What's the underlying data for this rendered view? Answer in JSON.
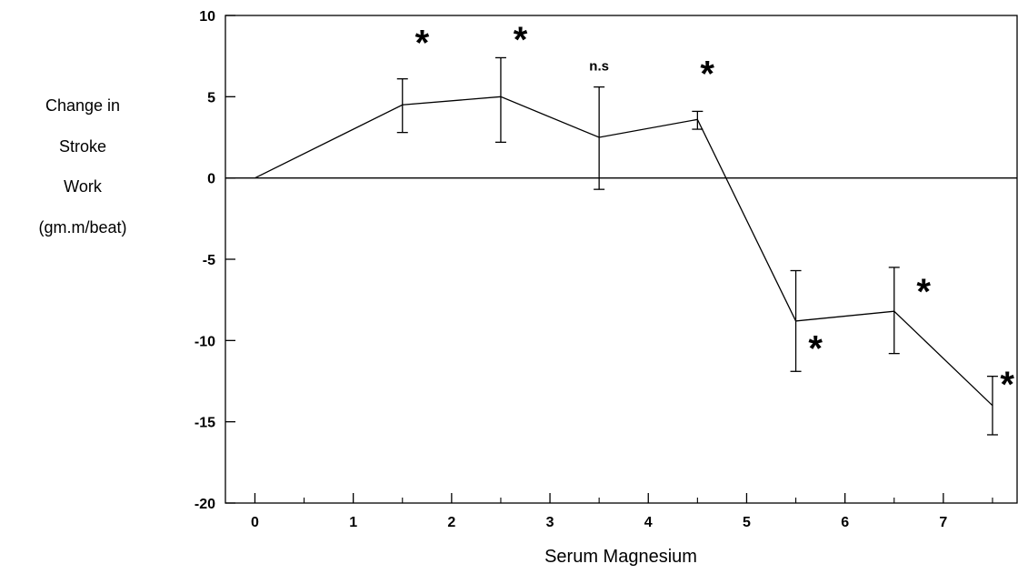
{
  "chart_data": {
    "type": "line",
    "xlabel": "Serum Magnesium",
    "ylabel_lines": [
      "Change in",
      "Stroke",
      "Work",
      "(gm.m/beat)"
    ],
    "xlim": [
      -0.3,
      7.75
    ],
    "ylim": [
      -20,
      10
    ],
    "x_ticks": [
      0,
      1,
      2,
      3,
      4,
      5,
      6,
      7
    ],
    "y_ticks": [
      10,
      5,
      0,
      -5,
      -10,
      -15,
      -20
    ],
    "x_minor_ticks": [
      0.5,
      1.5,
      2.5,
      3.5,
      4.5,
      5.5,
      6.5,
      7.5
    ],
    "reference_line_y": 0,
    "series": [
      {
        "points": [
          {
            "x": 0,
            "y": 0
          },
          {
            "x": 1.5,
            "y": 4.5,
            "err_low": 2.8,
            "err_high": 6.1
          },
          {
            "x": 2.5,
            "y": 5.0,
            "err_low": 2.2,
            "err_high": 7.4
          },
          {
            "x": 3.5,
            "y": 2.5,
            "err_low": -0.7,
            "err_high": 5.6
          },
          {
            "x": 4.5,
            "y": 3.6,
            "err_low": 3.0,
            "err_high": 4.1
          },
          {
            "x": 5.5,
            "y": -8.8,
            "err_low": -11.9,
            "err_high": -5.7
          },
          {
            "x": 6.5,
            "y": -8.2,
            "err_low": -10.8,
            "err_high": -5.5
          },
          {
            "x": 7.5,
            "y": -14.0,
            "err_low": -15.8,
            "err_high": -12.2
          }
        ]
      }
    ],
    "annotations": [
      {
        "text": "*",
        "x": 1.7,
        "y": 8.4,
        "kind": "star"
      },
      {
        "text": "*",
        "x": 2.7,
        "y": 8.6,
        "kind": "star"
      },
      {
        "text": "n.s",
        "x": 3.5,
        "y": 6.9,
        "kind": "label"
      },
      {
        "text": "*",
        "x": 4.6,
        "y": 6.5,
        "kind": "star"
      },
      {
        "text": "*",
        "x": 5.7,
        "y": -10.4,
        "kind": "star"
      },
      {
        "text": "*",
        "x": 6.8,
        "y": -6.9,
        "kind": "star"
      },
      {
        "text": "*",
        "x": 7.65,
        "y": -12.6,
        "kind": "star"
      }
    ]
  }
}
